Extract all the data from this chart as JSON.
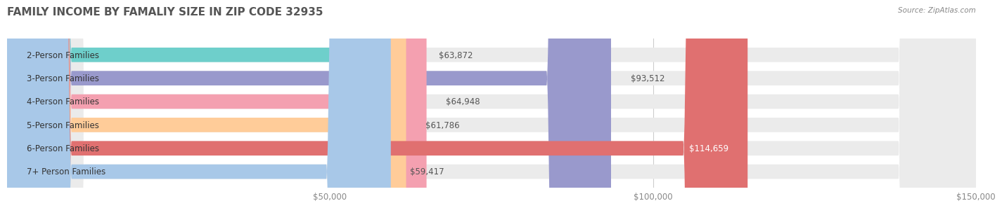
{
  "title": "FAMILY INCOME BY FAMALIY SIZE IN ZIP CODE 32935",
  "source": "Source: ZipAtlas.com",
  "categories": [
    "2-Person Families",
    "3-Person Families",
    "4-Person Families",
    "5-Person Families",
    "6-Person Families",
    "7+ Person Families"
  ],
  "values": [
    63872,
    93512,
    64948,
    61786,
    114659,
    59417
  ],
  "value_labels": [
    "$63,872",
    "$93,512",
    "$64,948",
    "$61,786",
    "$114,659",
    "$59,417"
  ],
  "bar_colors": [
    "#6ECFCB",
    "#9999CC",
    "#F4A0B0",
    "#FFCC99",
    "#E07070",
    "#A8C8E8"
  ],
  "xlim": [
    0,
    150000
  ],
  "xticks": [
    0,
    50000,
    100000,
    150000
  ],
  "xtick_labels": [
    "",
    "$50,000",
    "$100,000",
    "$150,000"
  ],
  "title_fontsize": 11,
  "label_fontsize": 8.5,
  "value_fontsize": 8.5,
  "background_color": "#FFFFFF",
  "bar_height": 0.62,
  "bar_bg_color": "#EBEBEB"
}
